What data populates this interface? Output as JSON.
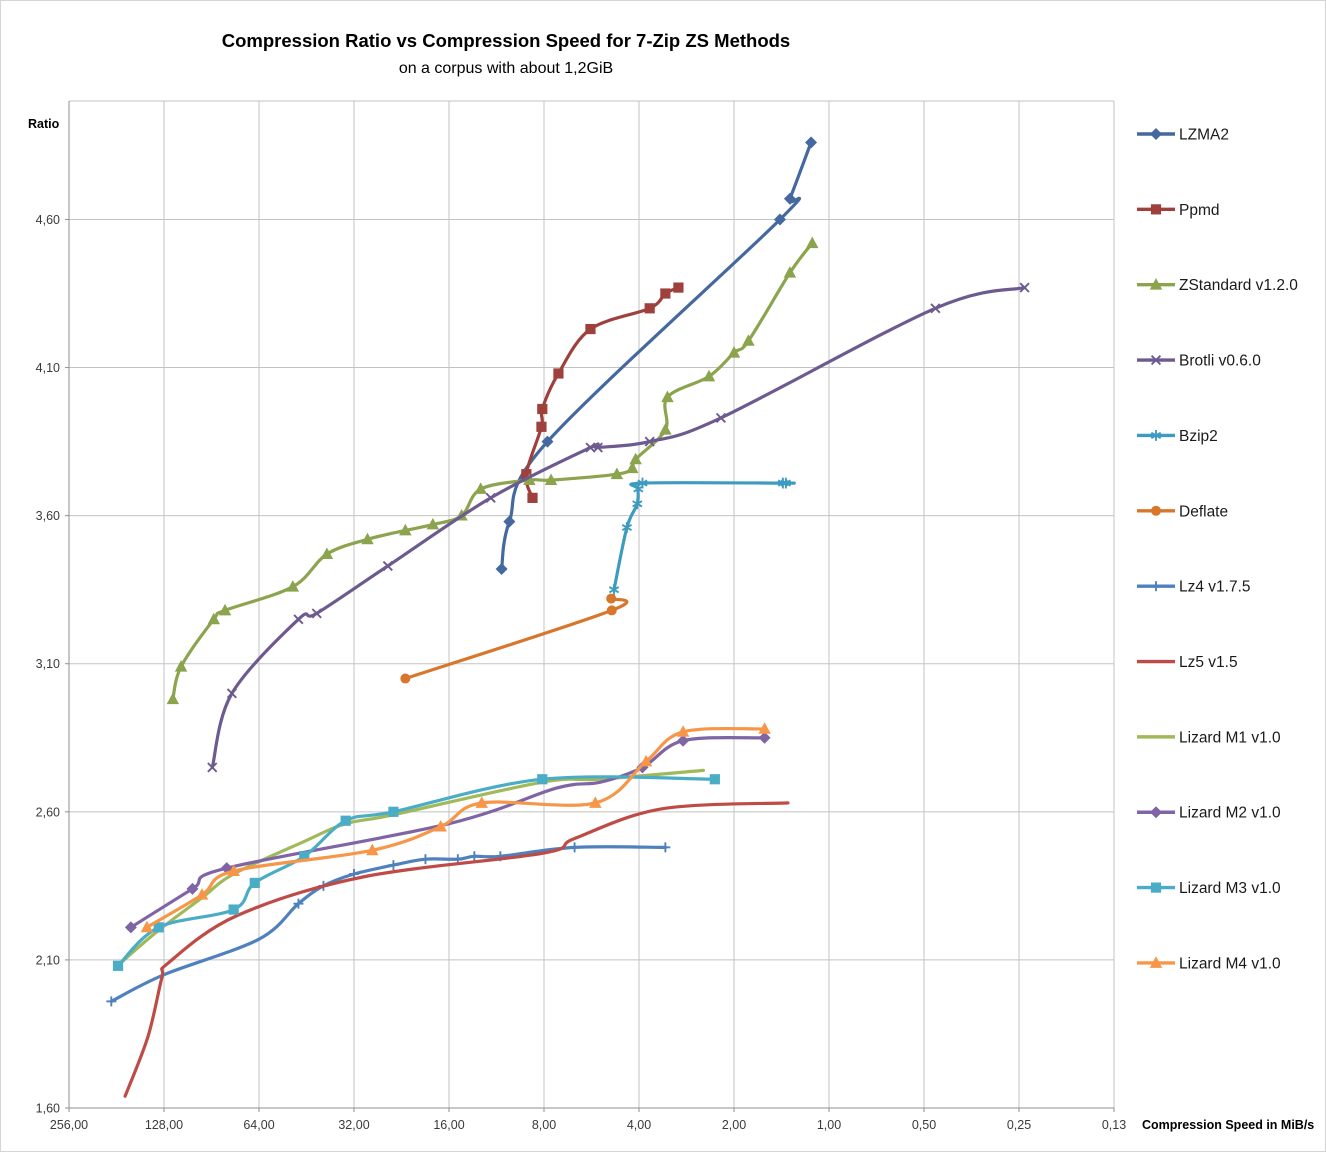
{
  "header": {
    "title": "Compression Ratio vs Compression Speed for 7-Zip ZS Methods",
    "subtitle": "on a corpus with about 1,2GiB"
  },
  "chart_data": {
    "type": "line",
    "title": "Compression Ratio vs Compression Speed for 7-Zip ZS Methods",
    "subtitle": "on a corpus with about 1,2GiB",
    "xlabel": "Compression Speed in MiB/s",
    "ylabel": "Ratio",
    "x_scale": "log2-reversed",
    "x_range_left_to_right": [
      256,
      0.125
    ],
    "y_range": [
      1.6,
      5.0
    ],
    "grid": true,
    "legend_position": "right",
    "x_ticks": {
      "labels": [
        "256,00",
        "128,00",
        "64,00",
        "32,00",
        "16,00",
        "8,00",
        "4,00",
        "2,00",
        "1,00",
        "0,50",
        "0,25",
        "0,13"
      ],
      "values": [
        256,
        128,
        64,
        32,
        16,
        8,
        4,
        2,
        1,
        0.5,
        0.25,
        0.125
      ]
    },
    "y_ticks": {
      "labels": [
        "1,60",
        "2,10",
        "2,60",
        "3,10",
        "3,60",
        "4,10",
        "4,60"
      ],
      "values": [
        1.6,
        2.1,
        2.6,
        3.1,
        3.6,
        4.1,
        4.6
      ]
    },
    "series": [
      {
        "name": "LZMA2",
        "color": "#45699E",
        "marker": "diamond",
        "points": [
          [
            10.9,
            3.42
          ],
          [
            10.3,
            3.58
          ],
          [
            7.8,
            3.85
          ],
          [
            1.43,
            4.6
          ],
          [
            1.33,
            4.67
          ],
          [
            1.14,
            4.86
          ]
        ]
      },
      {
        "name": "Ppmd",
        "color": "#9E413C",
        "marker": "square",
        "points": [
          [
            8.7,
            3.66
          ],
          [
            9.1,
            3.74
          ],
          [
            8.15,
            3.9
          ],
          [
            8.1,
            3.96
          ],
          [
            7.2,
            4.08
          ],
          [
            5.7,
            4.23
          ],
          [
            3.7,
            4.3
          ],
          [
            3.3,
            4.35
          ],
          [
            3.0,
            4.37
          ]
        ]
      },
      {
        "name": "ZStandard v1.2.0",
        "color": "#8BA44D",
        "marker": "triangle",
        "points": [
          [
            120,
            2.98
          ],
          [
            113,
            3.09
          ],
          [
            89,
            3.25
          ],
          [
            82,
            3.28
          ],
          [
            50,
            3.36
          ],
          [
            39,
            3.47
          ],
          [
            29,
            3.52
          ],
          [
            22,
            3.55
          ],
          [
            18,
            3.57
          ],
          [
            14.6,
            3.6
          ],
          [
            12.7,
            3.69
          ],
          [
            8.9,
            3.72
          ],
          [
            7.6,
            3.72
          ],
          [
            4.7,
            3.74
          ],
          [
            4.2,
            3.76
          ],
          [
            4.1,
            3.79
          ],
          [
            3.3,
            3.89
          ],
          [
            3.25,
            4.0
          ],
          [
            2.4,
            4.07
          ],
          [
            2.0,
            4.15
          ],
          [
            1.8,
            4.19
          ],
          [
            1.33,
            4.42
          ],
          [
            1.13,
            4.52
          ]
        ]
      },
      {
        "name": "Brotli v0.6.0",
        "color": "#6D5A8E",
        "marker": "x",
        "points": [
          [
            90,
            2.75
          ],
          [
            78,
            3.0
          ],
          [
            48,
            3.25
          ],
          [
            42,
            3.27
          ],
          [
            25,
            3.43
          ],
          [
            11.8,
            3.66
          ],
          [
            5.7,
            3.83
          ],
          [
            5.4,
            3.83
          ],
          [
            3.7,
            3.85
          ],
          [
            2.2,
            3.93
          ],
          [
            0.46,
            4.3
          ],
          [
            0.24,
            4.37
          ]
        ]
      },
      {
        "name": "Bzip2",
        "color": "#3D9BC0",
        "marker": "asterisk",
        "points": [
          [
            4.8,
            3.35
          ],
          [
            4.37,
            3.56
          ],
          [
            4.05,
            3.64
          ],
          [
            4.02,
            3.69
          ],
          [
            3.9,
            3.71
          ],
          [
            1.4,
            3.71
          ],
          [
            1.37,
            3.71
          ]
        ]
      },
      {
        "name": "Deflate",
        "color": "#D8772B",
        "marker": "circle",
        "points": [
          [
            22,
            3.05
          ],
          [
            4.88,
            3.28
          ],
          [
            4.9,
            3.32
          ]
        ]
      },
      {
        "name": "Lz4 v1.7.5",
        "color": "#4E81BD",
        "marker": "plus",
        "points": [
          [
            188,
            1.96
          ],
          [
            128,
            2.05,
            0
          ],
          [
            64,
            2.17,
            0
          ],
          [
            48,
            2.29
          ],
          [
            40,
            2.35
          ],
          [
            32,
            2.39
          ],
          [
            24,
            2.42
          ],
          [
            19,
            2.44
          ],
          [
            15,
            2.44
          ],
          [
            13.3,
            2.45
          ],
          [
            11,
            2.45
          ],
          [
            6.4,
            2.48
          ],
          [
            3.3,
            2.48
          ]
        ]
      },
      {
        "name": "Lz5 v1.5",
        "color": "#BF4B47",
        "marker": "none",
        "points": [
          [
            170,
            1.64
          ],
          [
            144,
            1.84
          ],
          [
            130,
            2.04
          ],
          [
            124,
            2.09
          ],
          [
            75,
            2.25
          ],
          [
            30,
            2.38
          ],
          [
            8.1,
            2.46
          ],
          [
            6.4,
            2.51
          ],
          [
            3.4,
            2.61
          ],
          [
            1.35,
            2.63
          ]
        ]
      },
      {
        "name": "Lizard M1 v1.0",
        "color": "#A0B95A",
        "marker": "none",
        "points": [
          [
            180,
            2.08
          ],
          [
            133,
            2.2
          ],
          [
            97,
            2.31
          ],
          [
            77,
            2.39
          ],
          [
            46,
            2.5
          ],
          [
            34,
            2.56
          ],
          [
            24,
            2.59
          ],
          [
            8.1,
            2.7
          ],
          [
            5.3,
            2.71
          ],
          [
            2.5,
            2.74
          ]
        ]
      },
      {
        "name": "Lizard M2 v1.0",
        "color": "#7F65A5",
        "marker": "diamond",
        "points": [
          [
            163,
            2.21
          ],
          [
            104,
            2.34
          ],
          [
            81,
            2.41
          ],
          [
            16,
            2.56,
            0
          ],
          [
            7.3,
            2.68,
            0
          ],
          [
            5.3,
            2.7,
            0
          ],
          [
            3.9,
            2.75
          ],
          [
            2.9,
            2.84
          ],
          [
            1.6,
            2.85
          ]
        ]
      },
      {
        "name": "Lizard M3 v1.0",
        "color": "#4BACC6",
        "marker": "square",
        "points": [
          [
            179,
            2.08
          ],
          [
            133,
            2.21
          ],
          [
            77,
            2.27
          ],
          [
            66,
            2.36
          ],
          [
            46,
            2.45
          ],
          [
            34,
            2.57
          ],
          [
            24,
            2.6
          ],
          [
            8.1,
            2.71
          ],
          [
            2.3,
            2.71
          ]
        ]
      },
      {
        "name": "Lizard M4 v1.0",
        "color": "#F79648",
        "marker": "triangle",
        "points": [
          [
            145,
            2.21
          ],
          [
            97,
            2.32
          ],
          [
            77,
            2.4
          ],
          [
            28,
            2.47
          ],
          [
            17,
            2.55
          ],
          [
            12.6,
            2.63
          ],
          [
            5.5,
            2.63
          ],
          [
            3.8,
            2.77
          ],
          [
            2.9,
            2.87
          ],
          [
            1.6,
            2.88
          ]
        ]
      }
    ]
  }
}
